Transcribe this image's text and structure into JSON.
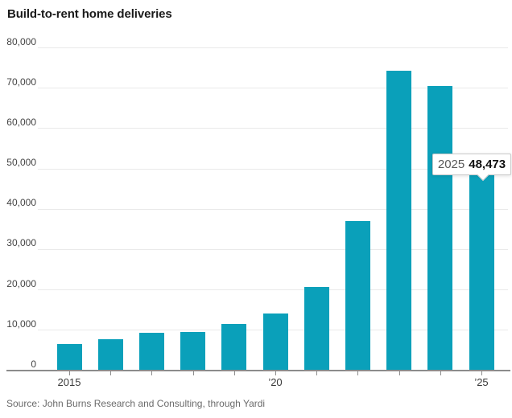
{
  "title": "Build-to-rent home deliveries",
  "source": "Source: John Burns Research and Consulting, through Yardi",
  "tooltip": {
    "year": "2025",
    "value": "48,473"
  },
  "colors": {
    "bar": "#0aa0ba",
    "axis": "#8c8c8c",
    "gridline": "#e9e9e9"
  },
  "chart_data": {
    "type": "bar",
    "title": "Build-to-rent home deliveries",
    "categories": [
      2015,
      2016,
      2017,
      2018,
      2019,
      2020,
      2021,
      2022,
      2023,
      2024,
      2025
    ],
    "values": [
      6500,
      7800,
      9300,
      9500,
      11500,
      14100,
      20800,
      37000,
      74400,
      70500,
      48473
    ],
    "xlabel": "",
    "ylabel": "",
    "ylim": [
      0,
      80000
    ],
    "ytick_step": 10000,
    "yticks": [
      {
        "label": "80,000",
        "value": 80000
      },
      {
        "label": "70,000",
        "value": 70000
      },
      {
        "label": "60,000",
        "value": 60000
      },
      {
        "label": "50,000",
        "value": 50000
      },
      {
        "label": "40,000",
        "value": 40000
      },
      {
        "label": "30,000",
        "value": 30000
      },
      {
        "label": "20,000",
        "value": 20000
      },
      {
        "label": "10,000",
        "value": 10000
      },
      {
        "label": "0",
        "value": 0
      }
    ],
    "xticks": [
      {
        "label": "2015",
        "index": 0
      },
      {
        "label": "’20",
        "index": 5
      },
      {
        "label": "’25",
        "index": 10
      }
    ],
    "grid": true,
    "legend": "none",
    "bar_color": "#0aa0ba",
    "annotation": {
      "category": "2025",
      "value": 48473,
      "label": "48,473"
    }
  }
}
